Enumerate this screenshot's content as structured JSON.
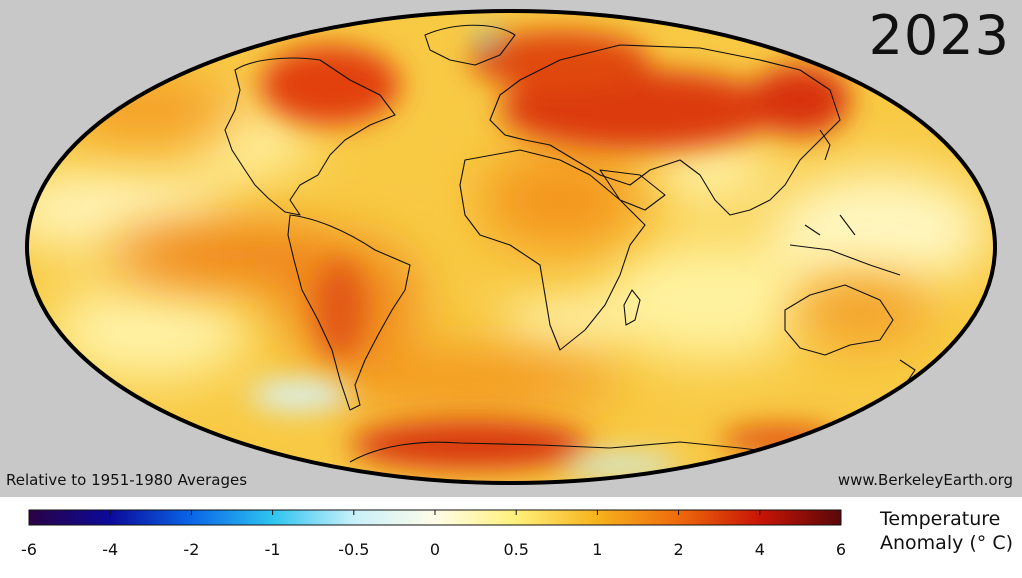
{
  "year": "2023",
  "baseline_note": "Relative to 1951-1980 Averages",
  "credit": "www.BerkeleyEarth.org",
  "legend": {
    "title_line1": "Temperature",
    "title_line2": "Anomaly (° C)",
    "ticks": [
      "-6",
      "-4",
      "-2",
      "-1",
      "-0.5",
      "0",
      "0.5",
      "1",
      "2",
      "4",
      "6"
    ],
    "colors": [
      "#2a0245",
      "#0b0a9a",
      "#0a66e8",
      "#2ec4f0",
      "#c8f0fa",
      "#fffde8",
      "#fff07a",
      "#f6b21c",
      "#ee6a0c",
      "#c81406",
      "#5a0808"
    ]
  }
}
